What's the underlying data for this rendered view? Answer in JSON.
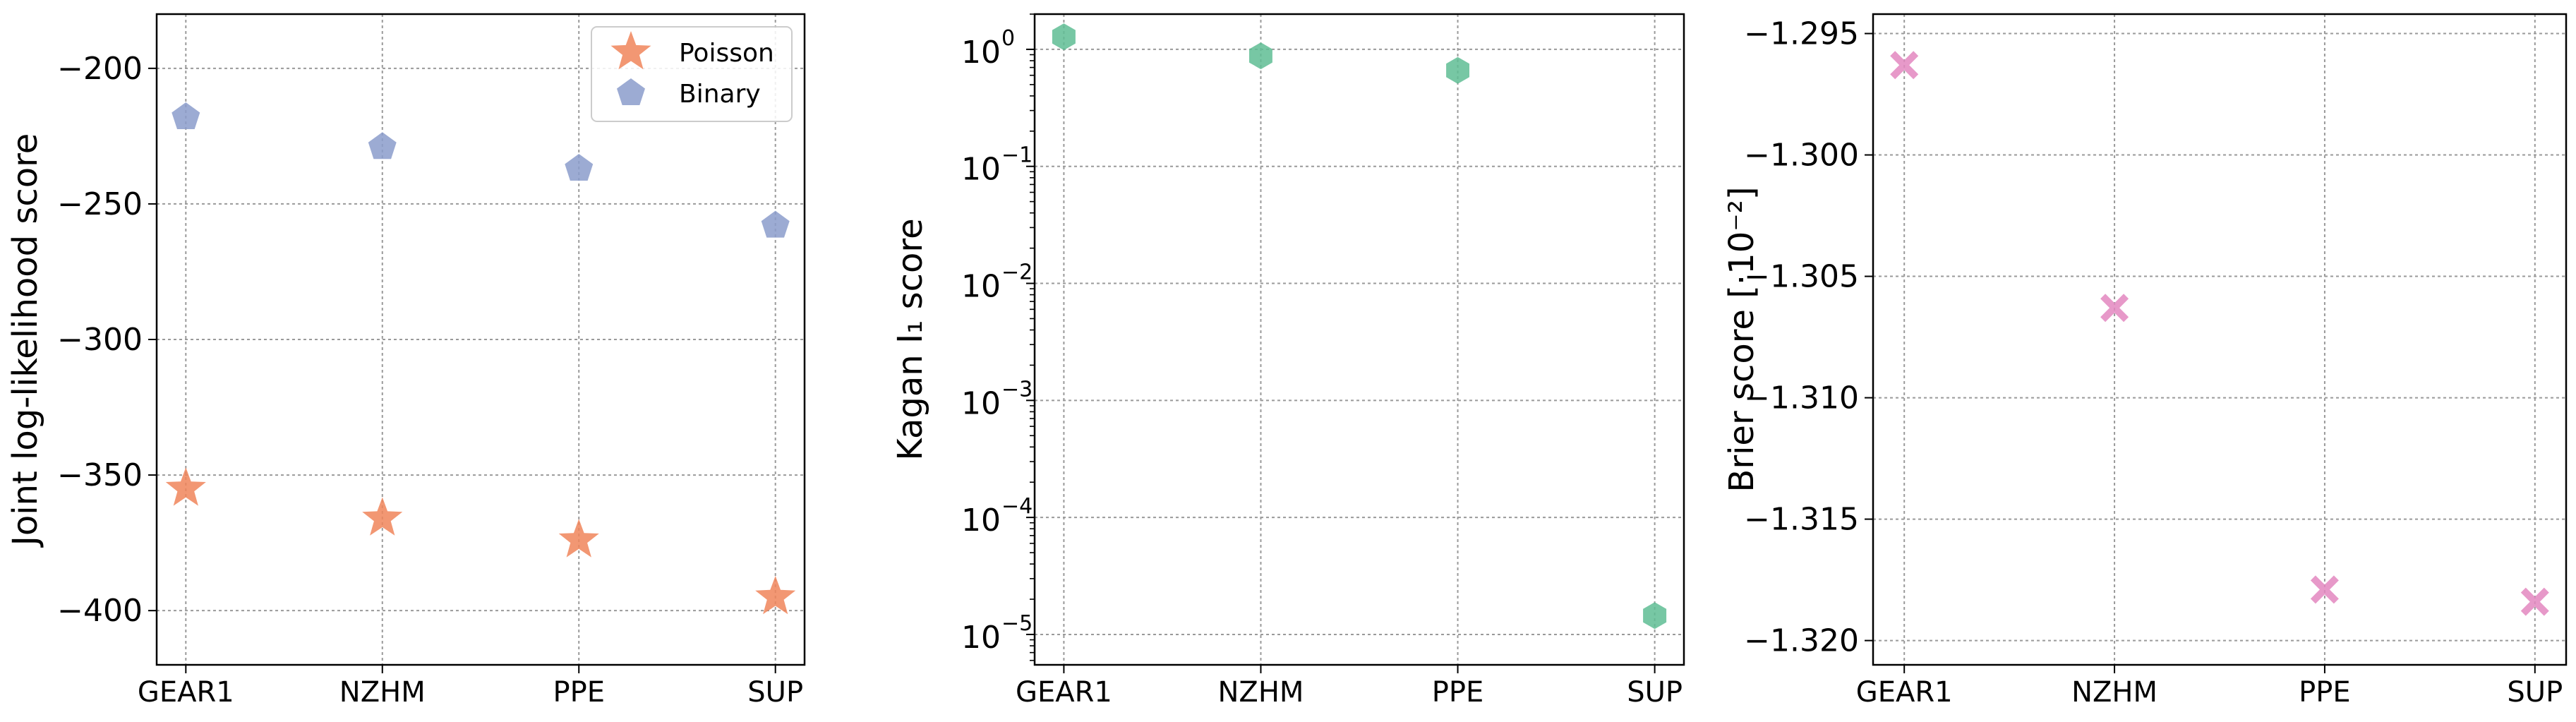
{
  "chart_data": [
    {
      "type": "scatter",
      "title": "",
      "xlabel": "",
      "ylabel": "Joint log-likelihood score",
      "categories": [
        "GEAR1",
        "NZHM",
        "PPE",
        "SUP"
      ],
      "ylim": [
        -420,
        -180
      ],
      "yticks": [
        -200,
        -250,
        -300,
        -350,
        -400
      ],
      "ytick_labels": [
        "−200",
        "−250",
        "−300",
        "−350",
        "−400"
      ],
      "grid": true,
      "legend": "top-right",
      "series": [
        {
          "name": "Poisson",
          "marker": "star",
          "color": "#f0855a",
          "values": [
            -355,
            -366,
            -374,
            -395
          ]
        },
        {
          "name": "Binary",
          "marker": "pentagon",
          "color": "#8b9ccb",
          "values": [
            -218,
            -229,
            -237,
            -258
          ]
        }
      ]
    },
    {
      "type": "scatter",
      "title": "",
      "xlabel": "",
      "ylabel": "Kagan I₁ score",
      "yscale": "log",
      "categories": [
        "GEAR1",
        "NZHM",
        "PPE",
        "SUP"
      ],
      "ylim": [
        5.5e-06,
        2.0
      ],
      "yticks": [
        1,
        0.1,
        0.01,
        0.001,
        0.0001,
        1e-05
      ],
      "ytick_labels": [
        {
          "base": "10",
          "exp": "0"
        },
        {
          "base": "10",
          "exp": "−1"
        },
        {
          "base": "10",
          "exp": "−2"
        },
        {
          "base": "10",
          "exp": "−3"
        },
        {
          "base": "10",
          "exp": "−4"
        },
        {
          "base": "10",
          "exp": "−5"
        }
      ],
      "grid": true,
      "series": [
        {
          "marker": "hexagon",
          "color": "#5fbd94",
          "values": [
            1.28,
            0.88,
            0.66,
            1.45e-05
          ]
        }
      ]
    },
    {
      "type": "scatter",
      "title": "",
      "xlabel": "",
      "ylabel": "Brier score [·10⁻²]",
      "categories": [
        "GEAR1",
        "NZHM",
        "PPE",
        "SUP"
      ],
      "ylim": [
        -1.321,
        -1.2942
      ],
      "yticks": [
        -1.295,
        -1.3,
        -1.305,
        -1.31,
        -1.315,
        -1.32
      ],
      "ytick_labels": [
        "−1.295",
        "−1.300",
        "−1.305",
        "−1.310",
        "−1.315",
        "−1.320"
      ],
      "grid": true,
      "series": [
        {
          "marker": "x-filled",
          "color": "#e387bf",
          "values": [
            -1.2963,
            -1.3063,
            -1.3179,
            -1.3184
          ]
        }
      ]
    }
  ]
}
